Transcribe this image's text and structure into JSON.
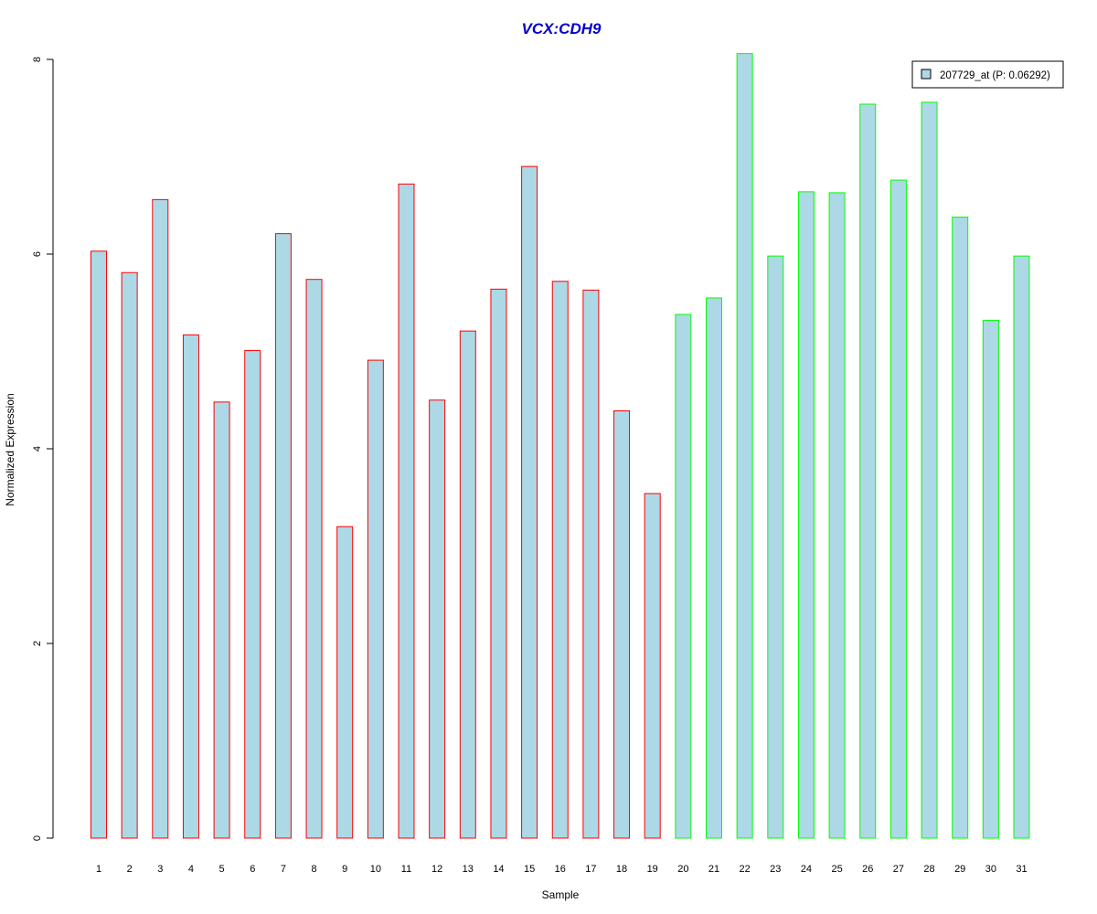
{
  "chart_data": {
    "type": "bar",
    "title": "VCX:CDH9",
    "xlabel": "Sample",
    "ylabel": "Normalized Expression",
    "ylim": [
      0,
      8
    ],
    "yticks": [
      "0",
      "2",
      "4",
      "6",
      "8"
    ],
    "categories": [
      "1",
      "2",
      "3",
      "4",
      "5",
      "6",
      "7",
      "8",
      "9",
      "10",
      "11",
      "12",
      "13",
      "14",
      "15",
      "16",
      "17",
      "18",
      "19",
      "20",
      "21",
      "22",
      "23",
      "24",
      "25",
      "26",
      "27",
      "28",
      "29",
      "30",
      "31"
    ],
    "values": [
      6.03,
      5.81,
      6.56,
      5.17,
      4.48,
      5.01,
      6.21,
      5.74,
      3.2,
      4.91,
      6.72,
      4.5,
      5.21,
      5.64,
      6.9,
      5.72,
      5.63,
      4.39,
      3.54,
      5.38,
      5.55,
      8.06,
      5.98,
      6.64,
      6.63,
      7.54,
      6.76,
      7.56,
      6.38,
      5.32,
      5.98
    ],
    "groups": [
      "red",
      "red",
      "red",
      "red",
      "red",
      "red",
      "red",
      "red",
      "red",
      "red",
      "red",
      "red",
      "red",
      "red",
      "red",
      "red",
      "red",
      "red",
      "red",
      "green",
      "green",
      "green",
      "green",
      "green",
      "green",
      "green",
      "green",
      "green",
      "green",
      "green",
      "green"
    ],
    "series": [
      {
        "name": "207729_at (P: 0.06292)",
        "values": [
          6.03,
          5.81,
          6.56,
          5.17,
          4.48,
          5.01,
          6.21,
          5.74,
          3.2,
          4.91,
          6.72,
          4.5,
          5.21,
          5.64,
          6.9,
          5.72,
          5.63,
          4.39,
          3.54,
          5.38,
          5.55,
          8.06,
          5.98,
          6.64,
          6.63,
          7.54,
          6.76,
          7.56,
          6.38,
          5.32,
          5.98
        ]
      }
    ],
    "legend_position": "top-right",
    "grid": false
  },
  "colors": {
    "title": "#0000cc",
    "bar_fill": "#add8e6",
    "border_red": "#ff0000",
    "border_green": "#00ff00",
    "axis": "#000000"
  }
}
